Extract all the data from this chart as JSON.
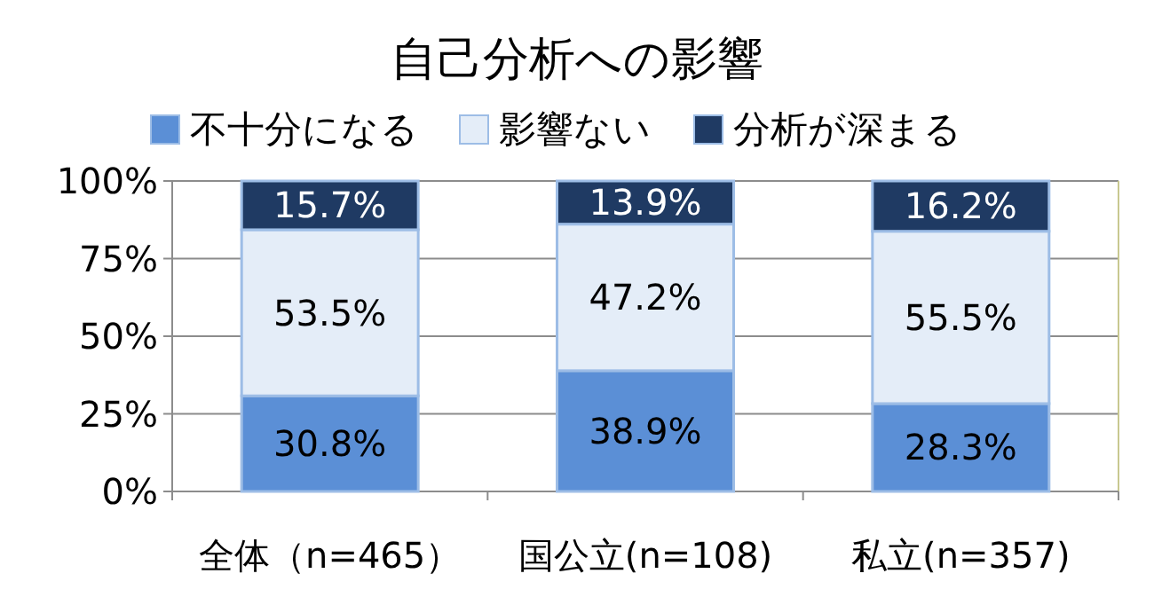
{
  "chart_data": {
    "type": "bar",
    "stacked": true,
    "title": "自己分析への影響",
    "categories": [
      "全体（n=465）",
      "国公立(n=108)",
      "私立(n=357)"
    ],
    "series": [
      {
        "name": "不十分になる",
        "color": "#5b8fd6",
        "values": [
          30.8,
          38.9,
          28.3
        ],
        "value_labels": [
          "30.8%",
          "38.9%",
          "28.3%"
        ]
      },
      {
        "name": "影響ない",
        "color": "#e4edf8",
        "values": [
          53.5,
          47.2,
          55.5
        ],
        "value_labels": [
          "53.5%",
          "47.2%",
          "55.5%"
        ]
      },
      {
        "name": "分析が深まる",
        "color": "#1f3a63",
        "values": [
          15.7,
          13.9,
          16.2
        ],
        "value_labels": [
          "15.7%",
          "13.9%",
          "16.2%"
        ]
      }
    ],
    "ylim": [
      0,
      100
    ],
    "yticks": [
      {
        "value": 0,
        "label": "0%"
      },
      {
        "value": 25,
        "label": "25%"
      },
      {
        "value": 50,
        "label": "50%"
      },
      {
        "value": 75,
        "label": "75%"
      },
      {
        "value": 100,
        "label": "100%"
      }
    ],
    "grid": "y",
    "legend": "top"
  }
}
